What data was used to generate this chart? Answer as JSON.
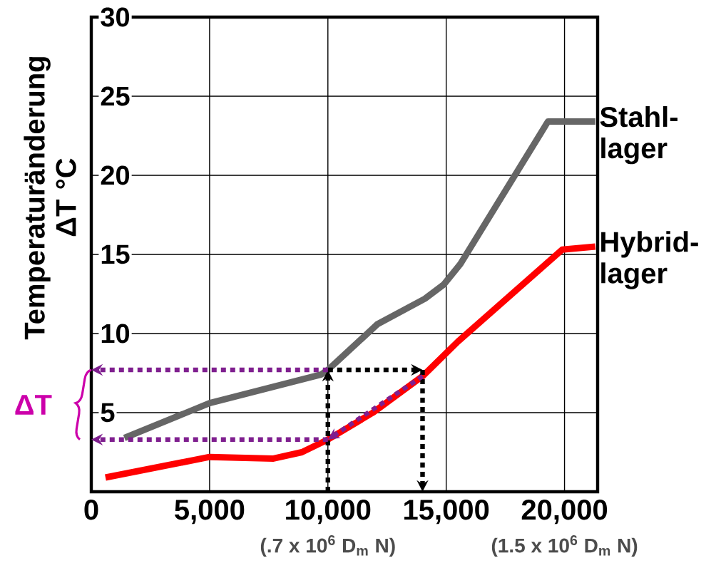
{
  "chart_data": {
    "type": "line",
    "ylabel": "Temperaturänderung ΔT °C",
    "xlim": [
      0,
      21400
    ],
    "ylim": [
      0,
      30
    ],
    "xticks": [
      0,
      {
        "value": 5000,
        "label": "5,000"
      },
      {
        "value": 10000,
        "label": "10,000"
      },
      {
        "value": 15000,
        "label": "15,000"
      },
      {
        "value": 20000,
        "label": "20,000"
      }
    ],
    "yticks": [
      5,
      10,
      15,
      20,
      25,
      30
    ],
    "grid": true,
    "series": [
      {
        "name": "Stahl-lager",
        "color": "#666666",
        "x": [
          1400,
          5000,
          9700,
          10000,
          12100,
          14100,
          14900,
          15600,
          19300,
          21300
        ],
        "values": [
          3.4,
          5.6,
          7.4,
          7.7,
          10.6,
          12.2,
          13.1,
          14.4,
          23.4,
          23.4
        ]
      },
      {
        "name": "Hybrid-lager",
        "color": "#ff0000",
        "x": [
          600,
          5000,
          7700,
          8900,
          10000,
          11900,
          14000,
          15500,
          19900,
          21300
        ],
        "values": [
          0.9,
          2.2,
          2.1,
          2.5,
          3.3,
          5.0,
          7.3,
          9.5,
          15.3,
          15.5
        ]
      }
    ],
    "annotations": [
      "ΔT",
      "(.7 x 10$^{6}$ D$_{m}$ N)",
      "(1.5 x 10$^{6}$ D$_{m}$ N)"
    ]
  }
}
